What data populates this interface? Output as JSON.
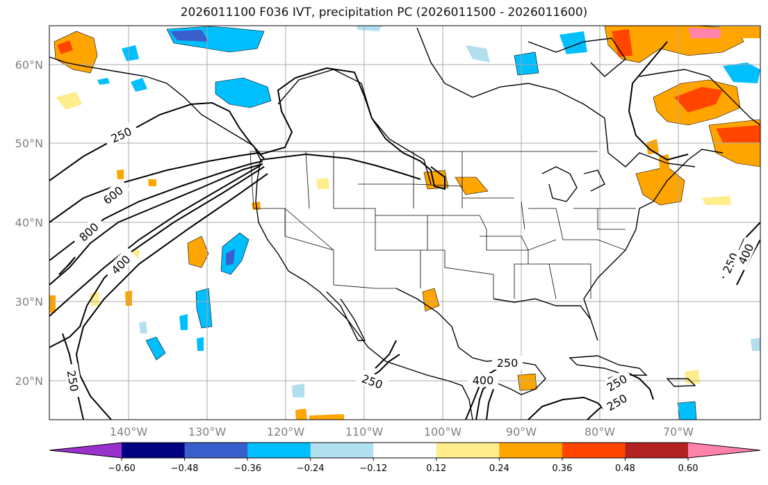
{
  "title": "2026011100 F036 IVT, precipitation PC (2026011500 - 2026011600)",
  "map": {
    "lat_labels": [
      "60°N",
      "50°N",
      "40°N",
      "30°N",
      "20°N"
    ],
    "lon_labels": [
      "140°W",
      "130°W",
      "120°W",
      "110°W",
      "100°W",
      "90°W",
      "80°W",
      "70°W"
    ],
    "ivt_contour_labels": [
      "250",
      "600",
      "800",
      "400",
      "250",
      "250",
      "250",
      "400",
      "250",
      "250",
      "250",
      "400"
    ]
  },
  "colorbar": {
    "colors": [
      "#9932cc",
      "#000080",
      "#3a5fcd",
      "#00bfff",
      "#b2dfee",
      "#ffffff",
      "#ffec8b",
      "#ffa500",
      "#ff4500",
      "#b22222",
      "#ff82ab"
    ],
    "tick_labels": [
      "−0.60",
      "−0.48",
      "−0.36",
      "−0.24",
      "−0.12",
      "0.12",
      "0.24",
      "0.36",
      "0.48",
      "0.60"
    ]
  },
  "colors": {
    "grid": "#a9a9a9",
    "contour": "#000000",
    "tick_text": "#808080"
  }
}
